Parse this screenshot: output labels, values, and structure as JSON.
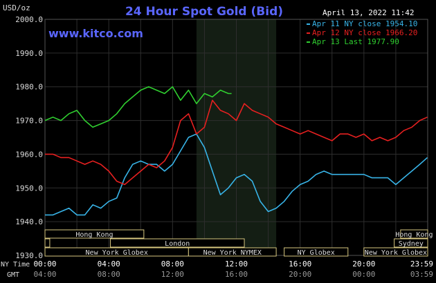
{
  "header": {
    "unit": "USD/oz",
    "title": "24 Hour Spot Gold (Bid)",
    "date_time": "April 13, 2022 11:42",
    "watermark": "www.kitco.com"
  },
  "time_axis": {
    "ny_label": "NY Time",
    "gmt_label": "GMT",
    "ny_ticks": [
      "00:00",
      "04:00",
      "08:00",
      "12:00",
      "16:00",
      "20:00",
      "23:59"
    ],
    "gmt_ticks": [
      "04:00",
      "08:00",
      "12:00",
      "16:00",
      "20:00",
      "00:00",
      "03:59"
    ]
  },
  "sessions": [
    {
      "name": "Hong Kong",
      "row": 0,
      "start": 0.0,
      "end": 6.2
    },
    {
      "name": "Hong Kong",
      "row": 0,
      "start": 22.3,
      "end": 24.0
    },
    {
      "name": "Sydney",
      "row": 1,
      "start": 0.0,
      "end": 0.3
    },
    {
      "name": "Sydney",
      "row": 1,
      "start": 21.9,
      "end": 24.0
    },
    {
      "name": "London",
      "row": 1,
      "start": 4.1,
      "end": 12.5
    },
    {
      "name": "New York Globex",
      "row": 2,
      "start": 0.0,
      "end": 9.0
    },
    {
      "name": "New York Globex",
      "row": 2,
      "start": 20.0,
      "end": 24.0
    },
    {
      "name": "New York NYMEX",
      "row": 2,
      "start": 9.0,
      "end": 14.5
    },
    {
      "name": "NY Globex",
      "row": 2,
      "start": 15.0,
      "end": 19.0
    }
  ],
  "colors": {
    "background": "#000000",
    "grid": "#2e2e2e",
    "title": "#5a66ff",
    "watermark": "#5a66ff",
    "highlight": "#141e14",
    "session_border": "#d8c880",
    "series_apr11": "#38b4e8",
    "series_apr12": "#e82020",
    "series_apr13": "#30d030"
  },
  "chart_data": {
    "type": "line",
    "title": "24 Hour Spot Gold (Bid)",
    "ylabel": "USD/oz",
    "xlabel": "NY Time",
    "ylim": [
      1930,
      2000
    ],
    "y_ticks": [
      "1930.0",
      "1940.0",
      "1950.0",
      "1960.0",
      "1970.0",
      "1980.0",
      "1990.0",
      "2000.0"
    ],
    "x_unit": "hours (NY time)",
    "highlight_hours": [
      9.5,
      14.5
    ],
    "grid": true,
    "legend_position": "top-right",
    "series": [
      {
        "name": "Apr 11 NY close 1954.10",
        "x": [
          0,
          0.5,
          1,
          1.5,
          2,
          2.5,
          3,
          3.5,
          4,
          4.5,
          5,
          5.5,
          6,
          6.5,
          7,
          7.5,
          8,
          8.5,
          9,
          9.5,
          10,
          10.5,
          11,
          11.5,
          12,
          12.5,
          13,
          13.5,
          14,
          14.5,
          15,
          15.5,
          16,
          16.5,
          17,
          17.5,
          18,
          18.5,
          19,
          19.5,
          20,
          20.5,
          21,
          21.5,
          22,
          22.5,
          23,
          23.5,
          23.98
        ],
        "y": [
          1942,
          1942,
          1943,
          1944,
          1942,
          1942,
          1945,
          1944,
          1946,
          1947,
          1953,
          1957,
          1958,
          1957,
          1957,
          1955,
          1957,
          1961,
          1965,
          1966,
          1962,
          1955,
          1948,
          1950,
          1953,
          1954,
          1952,
          1946,
          1943,
          1944,
          1946,
          1949,
          1951,
          1952,
          1954,
          1955,
          1954,
          1954,
          1954,
          1954,
          1954,
          1953,
          1953,
          1953,
          1951,
          1953,
          1955,
          1957,
          1959
        ]
      },
      {
        "name": "Apr 12 NY close 1966.20",
        "x": [
          0,
          0.5,
          1,
          1.5,
          2,
          2.5,
          3,
          3.5,
          4,
          4.5,
          5,
          5.5,
          6,
          6.5,
          7,
          7.5,
          8,
          8.5,
          9,
          9.5,
          10,
          10.5,
          11,
          11.5,
          12,
          12.5,
          13,
          13.5,
          14,
          14.5,
          15,
          15.5,
          16,
          16.5,
          17,
          17.5,
          18,
          18.5,
          19,
          19.5,
          20,
          20.5,
          21,
          21.5,
          22,
          22.5,
          23,
          23.5,
          23.98
        ],
        "y": [
          1960,
          1960,
          1959,
          1959,
          1958,
          1957,
          1958,
          1957,
          1955,
          1952,
          1951,
          1953,
          1955,
          1957,
          1956,
          1958,
          1962,
          1970,
          1972,
          1966,
          1968,
          1976,
          1973,
          1972,
          1970,
          1975,
          1973,
          1972,
          1971,
          1969,
          1968,
          1967,
          1966,
          1967,
          1966,
          1965,
          1964,
          1966,
          1966,
          1965,
          1966,
          1964,
          1965,
          1964,
          1965,
          1967,
          1968,
          1970,
          1971
        ]
      },
      {
        "name": "Apr 13 Last 1977.90",
        "x": [
          0,
          0.5,
          1,
          1.5,
          2,
          2.5,
          3,
          3.5,
          4,
          4.5,
          5,
          5.5,
          6,
          6.5,
          7,
          7.5,
          8,
          8.5,
          9,
          9.5,
          10,
          10.5,
          11,
          11.5,
          11.7
        ],
        "y": [
          1970,
          1971,
          1970,
          1972,
          1973,
          1970,
          1968,
          1969,
          1970,
          1972,
          1975,
          1977,
          1979,
          1980,
          1979,
          1978,
          1980,
          1976,
          1979,
          1975,
          1978,
          1977,
          1979,
          1978,
          1978
        ]
      }
    ]
  }
}
